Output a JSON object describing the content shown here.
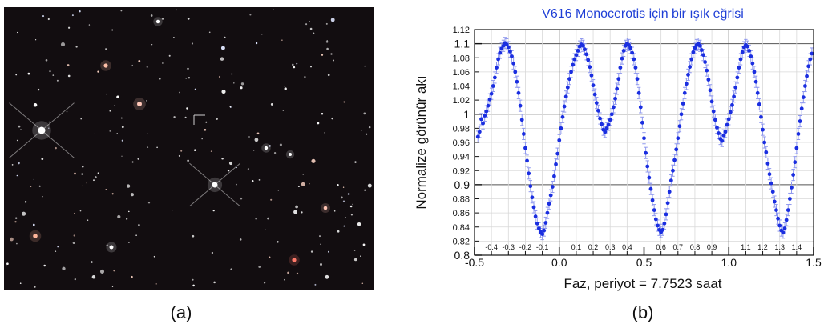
{
  "panel_a": {
    "caption": "(a)"
  },
  "panel_b": {
    "caption": "(b)"
  },
  "chart_data": {
    "type": "scatter",
    "title": "V616 Monocerotis için bir ışık eğrisi",
    "xlabel": "Faz, periyot = 7.7523 saat",
    "ylabel": "Normalize görünür akı",
    "xlim": [
      -0.5,
      1.5
    ],
    "ylim": [
      0.8,
      1.12
    ],
    "grid": true,
    "x_ticks_major": [
      "-0.5",
      "0.0",
      "0.5",
      "1.0",
      "1.5"
    ],
    "x_ticks_minor": [
      "-0.4",
      "-0.3",
      "-0.2",
      "-0.1",
      "0.1",
      "0.2",
      "0.3",
      "0.4",
      "0.6",
      "0.7",
      "0.8",
      "0.9",
      "1.1",
      "1.2",
      "1.3",
      "1.4"
    ],
    "y_ticks_major": [
      "0.8",
      "0.9",
      "1",
      "1.1"
    ],
    "y_ticks_minor": [
      "0.82",
      "0.84",
      "0.86",
      "0.88",
      "0.92",
      "0.94",
      "0.96",
      "0.98",
      "1.02",
      "1.04",
      "1.06",
      "1.08",
      "1.12"
    ],
    "colors": {
      "points": "#1a2ee0",
      "errorbars": "#8f98ee",
      "title": "#1f3fd6"
    },
    "series": [
      {
        "x": [
          -0.48,
          -0.47,
          -0.46,
          -0.45,
          -0.44,
          -0.43,
          -0.42,
          -0.41,
          -0.4,
          -0.39,
          -0.38,
          -0.37,
          -0.36,
          -0.35,
          -0.34,
          -0.33,
          -0.32,
          -0.31,
          -0.3,
          -0.29,
          -0.28,
          -0.27,
          -0.26,
          -0.25,
          -0.24,
          -0.23,
          -0.22,
          -0.21,
          -0.2,
          -0.19,
          -0.18,
          -0.17,
          -0.16,
          -0.15,
          -0.14,
          -0.13,
          -0.12,
          -0.11,
          -0.1,
          -0.09,
          -0.08,
          -0.07,
          -0.06,
          -0.05,
          -0.04,
          -0.03,
          -0.02,
          -0.01,
          0.0,
          0.01,
          0.02,
          0.03,
          0.04,
          0.05,
          0.06,
          0.07,
          0.08,
          0.09,
          0.1,
          0.11,
          0.12,
          0.13,
          0.14,
          0.15,
          0.16,
          0.17,
          0.18,
          0.19,
          0.2,
          0.21,
          0.22,
          0.23,
          0.24,
          0.25,
          0.26,
          0.27,
          0.28,
          0.29,
          0.3,
          0.31,
          0.32,
          0.33,
          0.34,
          0.35,
          0.36,
          0.37,
          0.38,
          0.39,
          0.4,
          0.41,
          0.42,
          0.43,
          0.44,
          0.45,
          0.46,
          0.47,
          0.48,
          0.49,
          0.5,
          0.51,
          0.52,
          0.53,
          0.54,
          0.55,
          0.56,
          0.57,
          0.58,
          0.59,
          0.6,
          0.61,
          0.62,
          0.63,
          0.64,
          0.65,
          0.66,
          0.67,
          0.68,
          0.69,
          0.7,
          0.71,
          0.72,
          0.73,
          0.74,
          0.75,
          0.76,
          0.77,
          0.78,
          0.79,
          0.8,
          0.81,
          0.82,
          0.83,
          0.84,
          0.85,
          0.86,
          0.87,
          0.88,
          0.89,
          0.9,
          0.91,
          0.92,
          0.93,
          0.94,
          0.95,
          0.96,
          0.97,
          0.98,
          0.99,
          1.0,
          1.01,
          1.02,
          1.03,
          1.04,
          1.05,
          1.06,
          1.07,
          1.08,
          1.09,
          1.1,
          1.11,
          1.12,
          1.13,
          1.14,
          1.15,
          1.16,
          1.17,
          1.18,
          1.19,
          1.2,
          1.21,
          1.22,
          1.23,
          1.24,
          1.25,
          1.26,
          1.27,
          1.28,
          1.29,
          1.3,
          1.31,
          1.32,
          1.33,
          1.34,
          1.35,
          1.36,
          1.37,
          1.38,
          1.39,
          1.4,
          1.41,
          1.42,
          1.43,
          1.44,
          1.45,
          1.46,
          1.47,
          1.48,
          1.49
        ],
        "y": [
          0.968,
          0.975,
          0.993,
          0.987,
          0.998,
          1.004,
          1.012,
          1.021,
          1.029,
          1.04,
          1.052,
          1.066,
          1.078,
          1.087,
          1.093,
          1.097,
          1.101,
          1.099,
          1.095,
          1.089,
          1.082,
          1.072,
          1.06,
          1.046,
          1.03,
          1.012,
          0.992,
          0.972,
          0.952,
          0.934,
          0.916,
          0.898,
          0.882,
          0.868,
          0.855,
          0.845,
          0.838,
          0.833,
          0.83,
          0.835,
          0.846,
          0.86,
          0.873,
          0.885,
          0.897,
          0.912,
          0.929,
          0.944,
          0.963,
          0.98,
          0.996,
          1.011,
          1.025,
          1.038,
          1.05,
          1.06,
          1.07,
          1.078,
          1.084,
          1.09,
          1.096,
          1.099,
          1.097,
          1.092,
          1.085,
          1.077,
          1.067,
          1.055,
          1.041,
          1.028,
          1.016,
          1.005,
          0.994,
          0.986,
          0.978,
          0.975,
          0.98,
          0.985,
          0.992,
          1.0,
          1.01,
          1.022,
          1.036,
          1.05,
          1.066,
          1.079,
          1.09,
          1.097,
          1.1,
          1.098,
          1.094,
          1.087,
          1.078,
          1.066,
          1.05,
          1.03,
          1.01,
          0.988,
          0.966,
          0.945,
          0.926,
          0.91,
          0.894,
          0.878,
          0.864,
          0.851,
          0.842,
          0.836,
          0.833,
          0.836,
          0.845,
          0.858,
          0.874,
          0.89,
          0.906,
          0.92,
          0.935,
          0.95,
          0.966,
          0.983,
          1.0,
          1.015,
          1.03,
          1.043,
          1.056,
          1.067,
          1.078,
          1.088,
          1.094,
          1.098,
          1.1,
          1.097,
          1.091,
          1.084,
          1.074,
          1.062,
          1.049,
          1.034,
          1.018,
          1.004,
          0.992,
          0.981,
          0.973,
          0.965,
          0.962,
          0.97,
          0.975,
          0.985,
          0.993,
          1.003,
          1.013,
          1.025,
          1.038,
          1.052,
          1.066,
          1.078,
          1.088,
          1.095,
          1.098,
          1.096,
          1.09,
          1.082,
          1.072,
          1.06,
          1.046,
          1.03,
          1.014,
          0.996,
          0.978,
          0.96,
          0.946,
          0.93,
          0.915,
          0.902,
          0.89,
          0.876,
          0.864,
          0.852,
          0.842,
          0.835,
          0.832,
          0.838,
          0.85,
          0.864,
          0.88,
          0.896,
          0.914,
          0.932,
          0.952,
          0.972,
          0.99,
          1.008,
          1.024,
          1.04,
          1.054,
          1.068,
          1.078,
          1.086
        ]
      }
    ]
  }
}
